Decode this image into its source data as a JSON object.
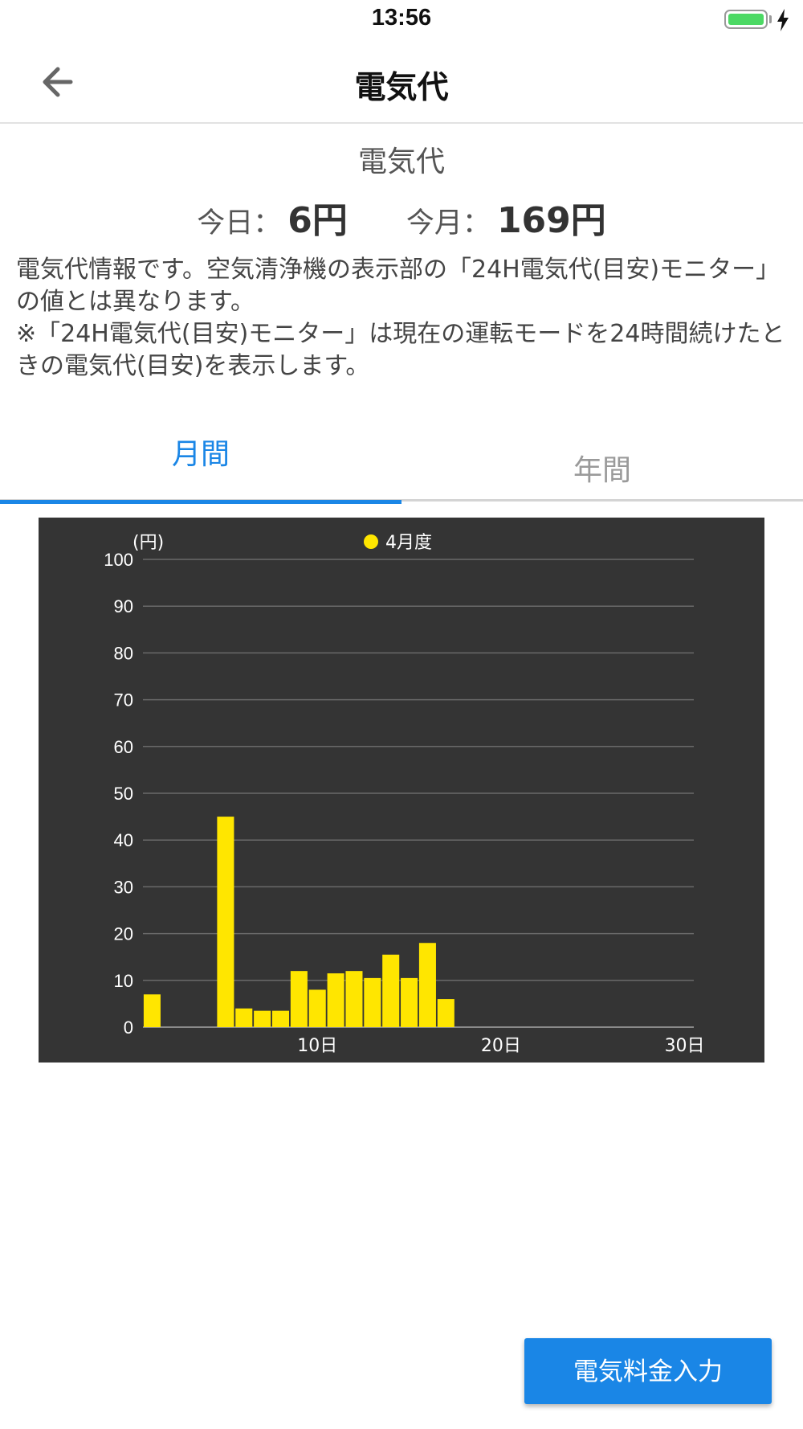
{
  "status_bar": {
    "time": "13:56",
    "battery_color": "#4cd964"
  },
  "nav": {
    "title": "電気代",
    "back_icon": "arrow-left-icon"
  },
  "summary": {
    "title": "電気代",
    "today_label": "今日：",
    "today_value": "6円",
    "month_label": "今月：",
    "month_value": "169円"
  },
  "description": {
    "line1": "電気代情報です。空気清浄機の表示部の「24H電気代(目安)モニター」の値とは異なります。",
    "line2": "※「24H電気代(目安)モニター」は現在の運転モードを24時間続けたときの電気代(目安)を表示します。"
  },
  "tabs": [
    {
      "label": "月間",
      "active": true
    },
    {
      "label": "年間",
      "active": false
    }
  ],
  "chart_data": {
    "type": "bar",
    "unit_label": "(円)",
    "legend": {
      "label": "4月度",
      "position": "top-center"
    },
    "bar_color": "#ffe600",
    "background": "#343434",
    "grid": true,
    "ylim": [
      0,
      100
    ],
    "y_ticks": [
      "0",
      "10",
      "20",
      "30",
      "40",
      "50",
      "60",
      "70",
      "80",
      "90",
      "100"
    ],
    "xlim": [
      1,
      31
    ],
    "x_ticks": [
      {
        "day": 10,
        "label": "10日"
      },
      {
        "day": 20,
        "label": "20日"
      },
      {
        "day": 30,
        "label": "30日"
      }
    ],
    "days": [
      1,
      2,
      3,
      4,
      5,
      6,
      7,
      8,
      9,
      10,
      11,
      12,
      13,
      14,
      15,
      16,
      17,
      18,
      19,
      20,
      21,
      22,
      23,
      24,
      25,
      26,
      27,
      28,
      29,
      30
    ],
    "values": [
      7,
      0,
      0,
      0,
      45,
      4,
      3.5,
      3.5,
      12,
      8,
      11.5,
      12,
      10.5,
      15.5,
      10.5,
      18,
      6,
      0,
      0,
      0,
      0,
      0,
      0,
      0,
      0,
      0,
      0,
      0,
      0,
      0
    ]
  },
  "footer": {
    "fee_button_label": "電気料金入力",
    "accent": "#1a86e6"
  }
}
